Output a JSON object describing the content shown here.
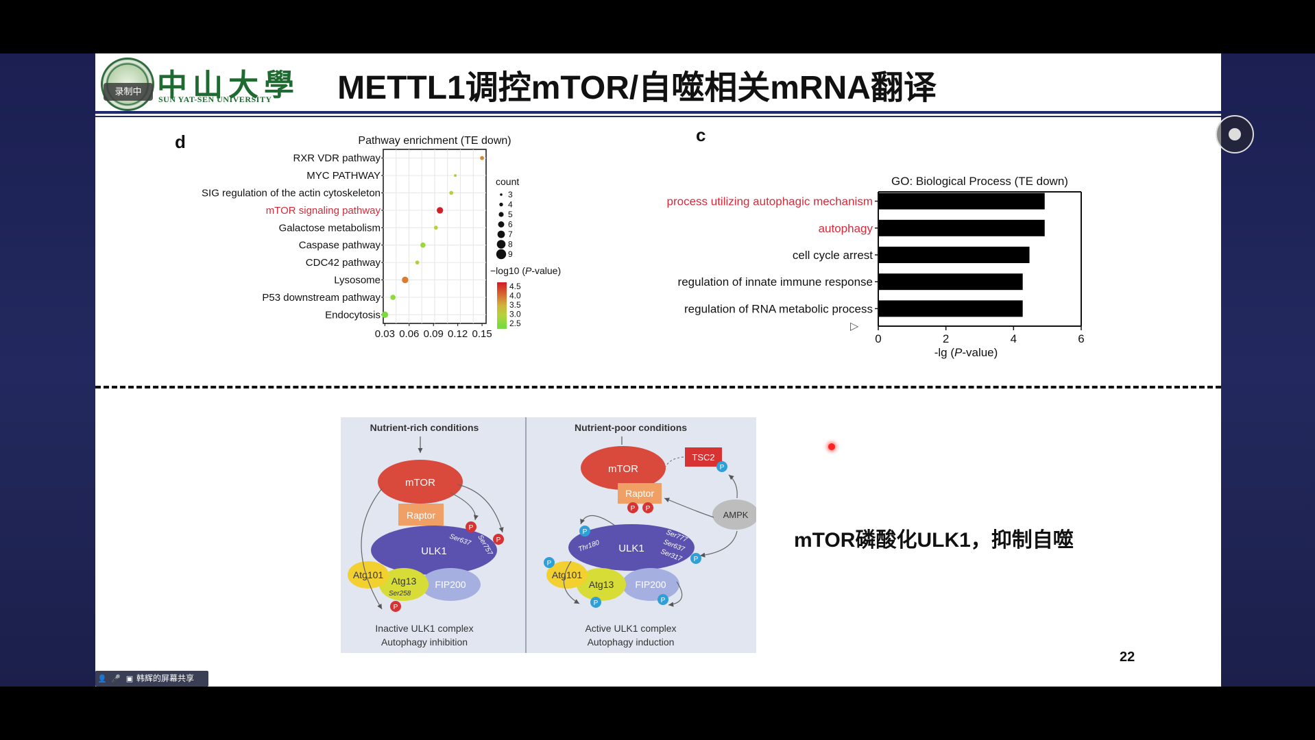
{
  "header": {
    "university_cn": "中山大學",
    "university_en": "SUN YAT-SEN UNIVERSITY",
    "recording_badge": "录制中",
    "slide_title": "METTL1调控mTOR/自噬相关mRNA翻译"
  },
  "panel_d": {
    "letter": "d",
    "chart_data": {
      "type": "scatter",
      "title": "Pathway enrichment (TE down)",
      "categories": [
        "RXR VDR pathway",
        "MYC PATHWAY",
        "SIG regulation of the actin cytoskeleton",
        "mTOR signaling pathway",
        "Galactose metabolism",
        "Caspase pathway",
        "CDC42 pathway",
        "Lysosome",
        "P53 downstream pathway",
        "Endocytosis"
      ],
      "highlight_category": "mTOR signaling pathway",
      "x_values": [
        0.15,
        0.117,
        0.112,
        0.098,
        0.093,
        0.077,
        0.07,
        0.055,
        0.04,
        0.03
      ],
      "counts": [
        4,
        3,
        4,
        6,
        4,
        5,
        4,
        6,
        5,
        6
      ],
      "neglog10_p": [
        3.8,
        2.9,
        3.1,
        4.6,
        3.0,
        2.8,
        3.1,
        3.9,
        2.7,
        2.5
      ],
      "x_ticks": [
        "0.03",
        "0.06",
        "0.09",
        "0.12",
        "0.15"
      ],
      "xlim": [
        0.028,
        0.155
      ],
      "size_legend_title": "count",
      "size_legend": [
        "3",
        "4",
        "5",
        "6",
        "7",
        "8",
        "9"
      ],
      "color_legend_title_prefix": "−log10 (",
      "color_legend_title_italic": "P",
      "color_legend_title_suffix": "-value)",
      "color_legend": [
        "4.5",
        "4.0",
        "3.5",
        "3.0",
        "2.5"
      ],
      "highlight_color": "#d42b3a"
    }
  },
  "panel_c": {
    "letter": "c",
    "chart_data": {
      "type": "bar",
      "title": "GO: Biological Process (TE down)",
      "categories": [
        "process utilizing autophagic mechanism",
        "autophagy",
        "cell cycle arrest",
        "regulation of innate immune response",
        "regulation of RNA metabolic process"
      ],
      "highlight_categories": [
        "process utilizing autophagic mechanism",
        "autophagy"
      ],
      "values": [
        4.9,
        4.9,
        4.45,
        4.25,
        4.25
      ],
      "x_ticks": [
        "0",
        "2",
        "4",
        "6"
      ],
      "xlim": [
        0,
        6
      ],
      "xlabel_prefix": "-lg (",
      "xlabel_italic": "P",
      "xlabel_suffix": "-value)",
      "highlight_color": "#d42b3a",
      "bar_color": "#000000"
    }
  },
  "diagram": {
    "left": {
      "condition": "Nutrient-rich conditions",
      "mtor": "mTOR",
      "raptor": "Raptor",
      "ulk1": "ULK1",
      "ser637": "Ser637",
      "ser757": "Ser757",
      "atg101": "Atg101",
      "atg13": "Atg13",
      "ser258": "Ser258",
      "fip200": "FIP200",
      "phospho": "P",
      "caption1": "Inactive ULK1 complex",
      "caption2": "Autophagy inhibition"
    },
    "right": {
      "condition": "Nutrient-poor conditions",
      "mtor": "mTOR",
      "tsc2": "TSC2",
      "raptor": "Raptor",
      "ampk": "AMPK",
      "ulk1": "ULK1",
      "thr180": "Thr180",
      "ser777": "Ser777",
      "ser637": "Ser637",
      "ser317": "Ser317",
      "atg101": "Atg101",
      "atg13": "Atg13",
      "fip200": "FIP200",
      "phospho": "P",
      "caption1": "Active ULK1 complex",
      "caption2": "Autophagy induction"
    }
  },
  "subtitle": "mTOR磷酸化ULK1，抑制自噬",
  "page_number": "22",
  "share_bar": {
    "label": "韩辉的屏幕共享"
  }
}
